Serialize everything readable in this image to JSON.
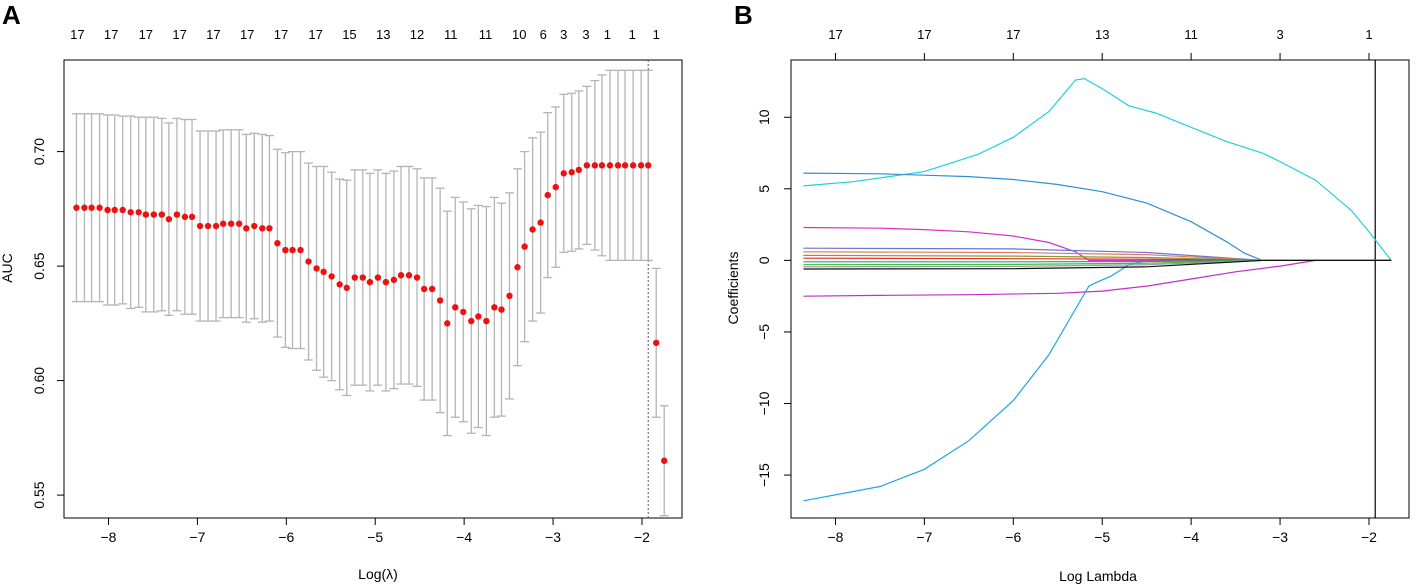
{
  "chart_data": [
    {
      "panel": "A",
      "type": "scatter",
      "subtype": "cross-validation AUC with error bars",
      "xlabel": "Log(λ)",
      "ylabel": "AUC",
      "xlim": [
        -8.5,
        -1.55
      ],
      "ylim": [
        0.54,
        0.74
      ],
      "xticks": [
        -8,
        -7,
        -6,
        -5,
        -4,
        -3,
        -2
      ],
      "xtick_labels": [
        "−8",
        "−7",
        "−6",
        "−5",
        "−4",
        "−3",
        "−2"
      ],
      "yticks": [
        0.55,
        0.6,
        0.65,
        0.7
      ],
      "ytick_labels": [
        "0.55",
        "0.60",
        "0.65",
        "0.70"
      ],
      "top_axis": {
        "positions": [
          -8.35,
          -7.97,
          -7.58,
          -7.2,
          -6.82,
          -6.44,
          -6.06,
          -5.67,
          -5.29,
          -4.91,
          -4.53,
          -4.15,
          -3.76,
          -3.38,
          -3.11,
          -2.88,
          -2.63,
          -2.39,
          -2.11,
          -1.84
        ],
        "labels": [
          "17",
          "17",
          "17",
          "17",
          "17",
          "17",
          "17",
          "17",
          "15",
          "13",
          "12",
          "11",
          "11",
          "10",
          "6",
          "3",
          "3",
          "1",
          "1",
          "1"
        ]
      },
      "vline": -1.93,
      "x": [
        -8.36,
        -8.27,
        -8.19,
        -8.1,
        -8.01,
        -7.93,
        -7.84,
        -7.75,
        -7.66,
        -7.58,
        -7.49,
        -7.4,
        -7.32,
        -7.23,
        -7.14,
        -7.06,
        -6.97,
        -6.88,
        -6.79,
        -6.71,
        -6.62,
        -6.53,
        -6.45,
        -6.36,
        -6.27,
        -6.19,
        -6.1,
        -6.01,
        -5.93,
        -5.84,
        -5.75,
        -5.66,
        -5.58,
        -5.49,
        -5.4,
        -5.32,
        -5.23,
        -5.14,
        -5.06,
        -4.97,
        -4.88,
        -4.79,
        -4.71,
        -4.62,
        -4.53,
        -4.45,
        -4.36,
        -4.27,
        -4.19,
        -4.1,
        -4.01,
        -3.92,
        -3.84,
        -3.75,
        -3.66,
        -3.58,
        -3.49,
        -3.4,
        -3.32,
        -3.23,
        -3.14,
        -3.06,
        -2.97,
        -2.88,
        -2.79,
        -2.71,
        -2.62,
        -2.53,
        -2.45,
        -2.36,
        -2.27,
        -2.19,
        -2.1,
        -2.01,
        -1.93,
        -1.84,
        -1.75
      ],
      "auc": [
        0.6755,
        0.6755,
        0.6755,
        0.6755,
        0.6745,
        0.6745,
        0.6745,
        0.6735,
        0.6735,
        0.6725,
        0.6725,
        0.6725,
        0.6705,
        0.6725,
        0.6715,
        0.6715,
        0.6675,
        0.6675,
        0.6675,
        0.6685,
        0.6685,
        0.6685,
        0.6665,
        0.6675,
        0.6665,
        0.6665,
        0.66,
        0.657,
        0.657,
        0.657,
        0.652,
        0.649,
        0.6475,
        0.6455,
        0.642,
        0.6405,
        0.645,
        0.645,
        0.643,
        0.645,
        0.643,
        0.644,
        0.646,
        0.646,
        0.645,
        0.64,
        0.64,
        0.635,
        0.625,
        0.632,
        0.63,
        0.626,
        0.628,
        0.626,
        0.632,
        0.631,
        0.637,
        0.6495,
        0.6585,
        0.666,
        0.669,
        0.681,
        0.6845,
        0.6905,
        0.691,
        0.692,
        0.694,
        0.694,
        0.694,
        0.694,
        0.694,
        0.694,
        0.694,
        0.694,
        0.694,
        0.6165,
        0.565
      ],
      "upper": [
        0.7165,
        0.7165,
        0.7165,
        0.7165,
        0.716,
        0.716,
        0.7155,
        0.7155,
        0.715,
        0.715,
        0.715,
        0.7145,
        0.7125,
        0.7145,
        0.714,
        0.714,
        0.709,
        0.709,
        0.709,
        0.7095,
        0.7095,
        0.7095,
        0.7075,
        0.708,
        0.7075,
        0.707,
        0.701,
        0.6995,
        0.7,
        0.7,
        0.695,
        0.6935,
        0.6935,
        0.691,
        0.688,
        0.6875,
        0.692,
        0.692,
        0.6905,
        0.692,
        0.6905,
        0.6915,
        0.6935,
        0.6935,
        0.6925,
        0.6885,
        0.6885,
        0.684,
        0.674,
        0.68,
        0.678,
        0.675,
        0.6765,
        0.676,
        0.68,
        0.6775,
        0.682,
        0.6925,
        0.7,
        0.706,
        0.7085,
        0.717,
        0.7195,
        0.725,
        0.7255,
        0.7265,
        0.7285,
        0.731,
        0.7335,
        0.7355,
        0.7355,
        0.7355,
        0.7355,
        0.7355,
        0.7355,
        0.649,
        0.589
      ],
      "lower": [
        0.6345,
        0.6345,
        0.6345,
        0.6345,
        0.633,
        0.633,
        0.6335,
        0.6315,
        0.632,
        0.63,
        0.63,
        0.6305,
        0.6285,
        0.6305,
        0.629,
        0.629,
        0.626,
        0.626,
        0.626,
        0.6275,
        0.6275,
        0.6275,
        0.6255,
        0.627,
        0.6255,
        0.626,
        0.619,
        0.6145,
        0.614,
        0.614,
        0.609,
        0.6045,
        0.6015,
        0.6,
        0.596,
        0.5935,
        0.598,
        0.598,
        0.5955,
        0.598,
        0.5955,
        0.5965,
        0.5985,
        0.5985,
        0.5975,
        0.5915,
        0.5915,
        0.586,
        0.576,
        0.584,
        0.582,
        0.577,
        0.5795,
        0.576,
        0.584,
        0.5845,
        0.592,
        0.6065,
        0.617,
        0.626,
        0.6295,
        0.645,
        0.6495,
        0.656,
        0.6565,
        0.6575,
        0.6595,
        0.657,
        0.6545,
        0.6525,
        0.6525,
        0.6525,
        0.6525,
        0.6525,
        0.6525,
        0.584,
        0.541
      ]
    },
    {
      "panel": "B",
      "type": "line",
      "subtype": "LASSO coefficient paths",
      "xlabel": "Log Lambda",
      "ylabel": "Coefficients",
      "xlim": [
        -8.5,
        -1.55
      ],
      "ylim": [
        -18,
        14
      ],
      "xticks": [
        -8,
        -7,
        -6,
        -5,
        -4,
        -3,
        -2
      ],
      "xtick_labels": [
        "−8",
        "−7",
        "−6",
        "−5",
        "−4",
        "−3",
        "−2"
      ],
      "yticks": [
        -15,
        -10,
        -5,
        0,
        5,
        10
      ],
      "ytick_labels": [
        "−15",
        "−10",
        "−5",
        "0",
        "5",
        "10"
      ],
      "top_axis": {
        "positions": [
          -8.0,
          -7.0,
          -6.0,
          -5.0,
          -4.0,
          -3.0,
          -2.0
        ],
        "labels": [
          "17",
          "17",
          "17",
          "13",
          "11",
          "3",
          "1"
        ]
      },
      "vline": -1.93,
      "series": [
        {
          "name": "cyan",
          "color": "#1fd0e0",
          "x": [
            -8.36,
            -7.8,
            -7.0,
            -6.4,
            -6.0,
            -5.6,
            -5.3,
            -5.2,
            -5.0,
            -4.7,
            -4.4,
            -4.0,
            -3.6,
            -3.2,
            -3.0,
            -2.6,
            -2.2,
            -2.0,
            -1.75
          ],
          "y": [
            5.2,
            5.5,
            6.2,
            7.4,
            8.6,
            10.4,
            12.6,
            12.7,
            12.0,
            10.8,
            10.3,
            9.3,
            8.3,
            7.5,
            6.9,
            5.6,
            3.5,
            2.0,
            0.0
          ]
        },
        {
          "name": "blue-pos",
          "color": "#2e8fd8",
          "x": [
            -8.36,
            -7.5,
            -7.0,
            -6.5,
            -6.0,
            -5.5,
            -5.0,
            -4.5,
            -4.0,
            -3.6,
            -3.4,
            -3.2,
            -1.75
          ],
          "y": [
            6.1,
            6.05,
            5.95,
            5.85,
            5.65,
            5.3,
            4.8,
            4.0,
            2.7,
            1.3,
            0.5,
            0.0,
            0.0
          ]
        },
        {
          "name": "blue-neg",
          "color": "#1aa6e6",
          "x": [
            -8.36,
            -7.5,
            -7.0,
            -6.5,
            -6.0,
            -5.6,
            -5.3,
            -5.15,
            -5.05,
            -4.9,
            -4.7,
            -4.5,
            -1.75
          ],
          "y": [
            -16.8,
            -15.8,
            -14.6,
            -12.6,
            -9.8,
            -6.6,
            -3.4,
            -1.8,
            -1.5,
            -1.1,
            -0.3,
            0.0,
            0.0
          ]
        },
        {
          "name": "magenta-pos",
          "color": "#d633c4",
          "x": [
            -8.36,
            -7.5,
            -7.0,
            -6.5,
            -6.0,
            -5.6,
            -5.3,
            -5.15,
            -1.75
          ],
          "y": [
            2.3,
            2.25,
            2.15,
            2.0,
            1.7,
            1.25,
            0.6,
            0.0,
            0.0
          ]
        },
        {
          "name": "magenta-neg",
          "color": "#c22fc8",
          "x": [
            -8.36,
            -7.5,
            -6.5,
            -5.5,
            -5.0,
            -4.5,
            -4.0,
            -3.5,
            -3.0,
            -2.6,
            -1.75
          ],
          "y": [
            -2.5,
            -2.45,
            -2.4,
            -2.3,
            -2.15,
            -1.8,
            -1.3,
            -0.8,
            -0.4,
            0.0,
            0.0
          ]
        },
        {
          "name": "slateblue",
          "color": "#6b73d6",
          "x": [
            -8.36,
            -6.0,
            -4.5,
            -3.2,
            -1.75
          ],
          "y": [
            0.85,
            0.8,
            0.55,
            0.0,
            0.0
          ]
        },
        {
          "name": "salmon",
          "color": "#e07a5f",
          "x": [
            -8.36,
            -6.0,
            -4.5,
            -3.2,
            -1.75
          ],
          "y": [
            0.6,
            0.55,
            0.4,
            0.0,
            0.0
          ]
        },
        {
          "name": "olive",
          "color": "#8a9a2a",
          "x": [
            -8.36,
            -6.0,
            -4.5,
            -3.2,
            -1.75
          ],
          "y": [
            0.35,
            0.3,
            0.2,
            0.0,
            0.0
          ]
        },
        {
          "name": "red",
          "color": "#e03030",
          "x": [
            -8.36,
            -6.0,
            -4.5,
            -3.2,
            -1.75
          ],
          "y": [
            0.15,
            0.12,
            0.08,
            0.0,
            0.0
          ]
        },
        {
          "name": "teal",
          "color": "#2aa08a",
          "x": [
            -8.36,
            -6.0,
            -4.5,
            -3.2,
            -1.75
          ],
          "y": [
            -0.1,
            -0.1,
            -0.08,
            0.0,
            0.0
          ]
        },
        {
          "name": "green",
          "color": "#3cc03c",
          "x": [
            -8.36,
            -6.0,
            -4.5,
            -3.2,
            -1.75
          ],
          "y": [
            -0.3,
            -0.28,
            -0.2,
            0.0,
            0.0
          ]
        },
        {
          "name": "gray",
          "color": "#9a9a9a",
          "x": [
            -8.36,
            -6.0,
            -4.5,
            -3.2,
            -1.75
          ],
          "y": [
            -0.45,
            -0.42,
            -0.3,
            0.0,
            0.0
          ]
        },
        {
          "name": "black",
          "color": "#111111",
          "x": [
            -8.36,
            -6.0,
            -4.5,
            -3.2,
            -1.75
          ],
          "y": [
            -0.6,
            -0.58,
            -0.45,
            0.0,
            0.0
          ]
        }
      ]
    }
  ]
}
